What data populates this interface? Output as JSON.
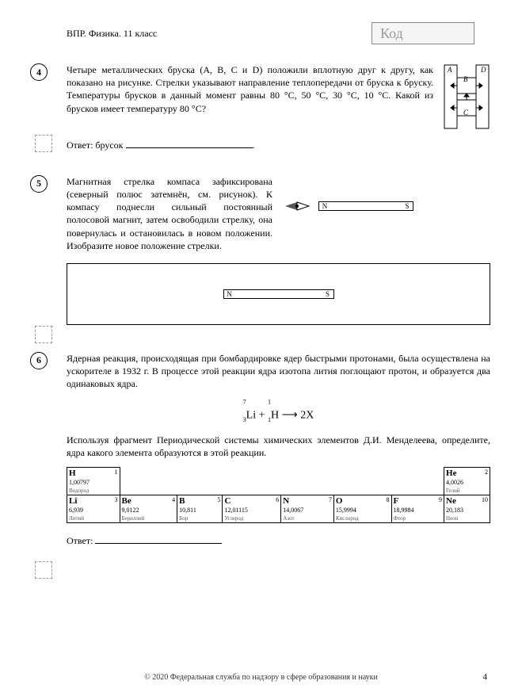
{
  "header": {
    "label": "ВПР. Физика. 11 класс",
    "code_label": "Код"
  },
  "q4": {
    "num": "4",
    "text": "Четыре металлических бруска (A, B, C и D) положили вплотную друг к другу, как показано на рисунке. Стрелки указывают направление теплопередачи от бруска к бруску. Температуры брусков в данный момент равны 80 °C, 50 °C, 30 °C, 10 °C. Какой из брусков имеет температуру 80 °C?",
    "answer_label": "Ответ: брусок",
    "labels": {
      "A": "A",
      "B": "B",
      "C": "C",
      "D": "D"
    }
  },
  "q5": {
    "num": "5",
    "text": "Магнитная стрелка компаса зафиксирована (северный полюс затемнён, см. рисунок). К компасу поднесли сильный постоянный полосовой магнит, затем освободили стрелку, она повернулась и остановилась в новом положении. Изобразите новое положение стрелки.",
    "N": "N",
    "S": "S"
  },
  "q6": {
    "num": "6",
    "text1": "Ядерная реакция, происходящая при бомбардировке ядер быстрыми протонами, была осуществлена на ускорителе в 1932 г. В процессе этой реакции ядра изотопа лития поглощают протон, и образуется два одинаковых ядра.",
    "text2": "Используя фрагмент Периодической системы химических элементов Д.И. Менделеева, определите, ядра какого элемента образуются в этой реакции.",
    "answer_label": "Ответ:",
    "equation_parts": {
      "li_top": "7",
      "li_bot": "3",
      "li": "Li",
      "h_top": "1",
      "h_bot": "1",
      "h": "H",
      "plus": " + ",
      "arrow": " ⟶ ",
      "res": "2X"
    }
  },
  "periodic": {
    "row1": [
      {
        "num": "1",
        "sym": "H",
        "mass": "1,00797",
        "name": "Водород"
      },
      null,
      null,
      null,
      null,
      null,
      null,
      null,
      null,
      {
        "num": "2",
        "sym": "He",
        "mass": "4,0026",
        "name": "Гелий"
      }
    ],
    "row2": [
      {
        "num": "3",
        "sym": "Li",
        "mass": "6,939",
        "name": "Литий"
      },
      {
        "num": "4",
        "sym": "Be",
        "mass": "9,0122",
        "name": "Бериллий"
      },
      {
        "num": "5",
        "sym": "B",
        "mass": "10,811",
        "name": "Бор"
      },
      {
        "num": "6",
        "sym": "C",
        "mass": "12,01115",
        "name": "Углерод"
      },
      {
        "num": "7",
        "sym": "N",
        "mass": "14,0067",
        "name": "Азот"
      },
      {
        "num": "8",
        "sym": "O",
        "mass": "15,9994",
        "name": "Кислород"
      },
      {
        "num": "9",
        "sym": "F",
        "mass": "18,9984",
        "name": "Фтор"
      },
      {
        "num": "10",
        "sym": "Ne",
        "mass": "20,183",
        "name": "Неон"
      }
    ]
  },
  "footer": {
    "copyright": "© 2020 Федеральная служба по надзору в сфере образования и науки",
    "page": "4"
  }
}
